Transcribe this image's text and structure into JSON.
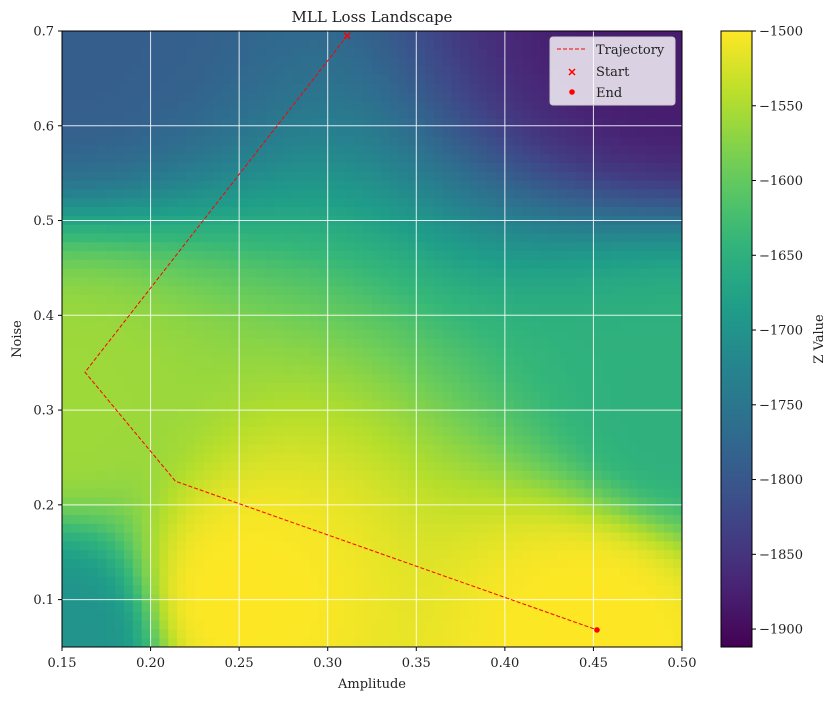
{
  "chart_data": {
    "type": "heatmap",
    "title": "MLL Loss Landscape",
    "xlabel": "Amplitude",
    "ylabel": "Noise",
    "xlim": [
      0.15,
      0.5
    ],
    "ylim": [
      0.05,
      0.7
    ],
    "x_ticks": [
      "0.15",
      "0.20",
      "0.25",
      "0.30",
      "0.35",
      "0.40",
      "0.45",
      "0.50"
    ],
    "y_ticks": [
      "0.1",
      "0.2",
      "0.3",
      "0.4",
      "0.5",
      "0.6",
      "0.7"
    ],
    "grid": true,
    "legend_position": "top-right",
    "colorbar": {
      "label": "Z Value",
      "min": -1912,
      "max": -1500,
      "ticks": [
        "−1500",
        "−1550",
        "−1600",
        "−1650",
        "−1700",
        "−1750",
        "−1800",
        "−1850",
        "−1900"
      ],
      "colormap": "viridis"
    },
    "surface_samples": [
      {
        "amplitude": 0.15,
        "noise": 0.06,
        "z": -1700
      },
      {
        "amplitude": 0.25,
        "noise": 0.1,
        "z": -1500
      },
      {
        "amplitude": 0.45,
        "noise": 0.07,
        "z": -1500
      },
      {
        "amplitude": 0.5,
        "noise": 0.3,
        "z": -1650
      },
      {
        "amplitude": 0.15,
        "noise": 0.3,
        "z": -1560
      },
      {
        "amplitude": 0.15,
        "noise": 0.7,
        "z": -1790
      },
      {
        "amplitude": 0.5,
        "noise": 0.7,
        "z": -1880
      }
    ],
    "series": [
      {
        "name": "Trajectory",
        "type": "line",
        "color": "#ff0000",
        "style": "dashed",
        "x": [
          0.311,
          0.163,
          0.214,
          0.452
        ],
        "y": [
          0.695,
          0.34,
          0.225,
          0.068
        ]
      },
      {
        "name": "Start",
        "type": "scatter",
        "marker": "x",
        "color": "#ff0000",
        "x": [
          0.311
        ],
        "y": [
          0.695
        ]
      },
      {
        "name": "End",
        "type": "scatter",
        "marker": "o",
        "color": "#ff0000",
        "x": [
          0.452
        ],
        "y": [
          0.068
        ]
      }
    ]
  }
}
